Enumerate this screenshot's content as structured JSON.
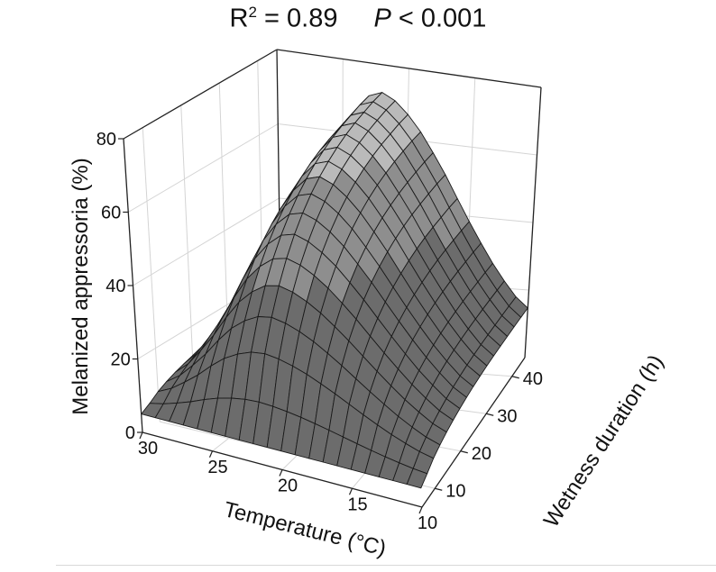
{
  "title": {
    "r2_label": "R",
    "r2_sup": "2",
    "r2_value": " = 0.89",
    "p_label": "P",
    "p_value": " < 0.001"
  },
  "colors": {
    "low": "#6c6c6c",
    "mid": "#8e8e8e",
    "high": "#bababa",
    "mesh": "#1a1a1a",
    "grid": "#d4d4d4",
    "axis": "#222222"
  },
  "chart_data": {
    "type": "surface",
    "title": "R² = 0.89   P < 0.001",
    "xlabel": "Temperature (°C)",
    "ylabel": "Wetness duration (h)",
    "zlabel": "Melanized appressoria (%)",
    "xlim": [
      10,
      30
    ],
    "ylim": [
      5,
      45
    ],
    "zlim": [
      0,
      80
    ],
    "x_ticks": [
      "30",
      "25",
      "20",
      "15",
      "10"
    ],
    "x_tick_values": [
      30,
      25,
      20,
      15,
      10
    ],
    "y_ticks": [
      "10",
      "20",
      "30",
      "40"
    ],
    "y_tick_values": [
      10,
      20,
      30,
      40
    ],
    "z_ticks": [
      "0",
      "20",
      "40",
      "60",
      "80"
    ],
    "z_tick_values": [
      0,
      20,
      40,
      60,
      80
    ],
    "shade_bands": [
      40,
      60
    ],
    "grid": true,
    "x": [
      10,
      12.5,
      15,
      17.5,
      20,
      22.5,
      25,
      27.5,
      30
    ],
    "y": [
      5,
      10,
      15,
      20,
      25,
      30,
      35,
      40,
      45
    ],
    "z": [
      [
        5,
        5,
        5,
        5,
        5,
        5,
        5,
        5,
        5
      ],
      [
        8.0,
        10.9,
        15.2,
        20.0,
        23.9,
        25.4,
        21.6,
        13.9,
        8.2
      ],
      [
        10.1,
        15.2,
        22.6,
        30.8,
        37.5,
        40.1,
        33.5,
        20.4,
        10.5
      ],
      [
        11.6,
        18.2,
        27.8,
        38.4,
        47.1,
        50.5,
        42.0,
        24.9,
        12.1
      ],
      [
        12.7,
        20.4,
        31.5,
        43.9,
        54.1,
        58.0,
        48.1,
        28.2,
        13.3
      ],
      [
        13.5,
        22.0,
        34.2,
        47.9,
        59.1,
        63.4,
        52.5,
        30.6,
        14.1
      ],
      [
        14.0,
        23.1,
        36.2,
        50.7,
        62.7,
        67.3,
        55.7,
        32.3,
        14.7
      ],
      [
        14.4,
        23.9,
        37.5,
        52.7,
        65.2,
        70.0,
        57.8,
        33.5,
        15.1
      ],
      [
        14.7,
        24.5,
        38.5,
        54.2,
        67.0,
        72.0,
        59.5,
        34.3,
        15.5
      ]
    ]
  }
}
